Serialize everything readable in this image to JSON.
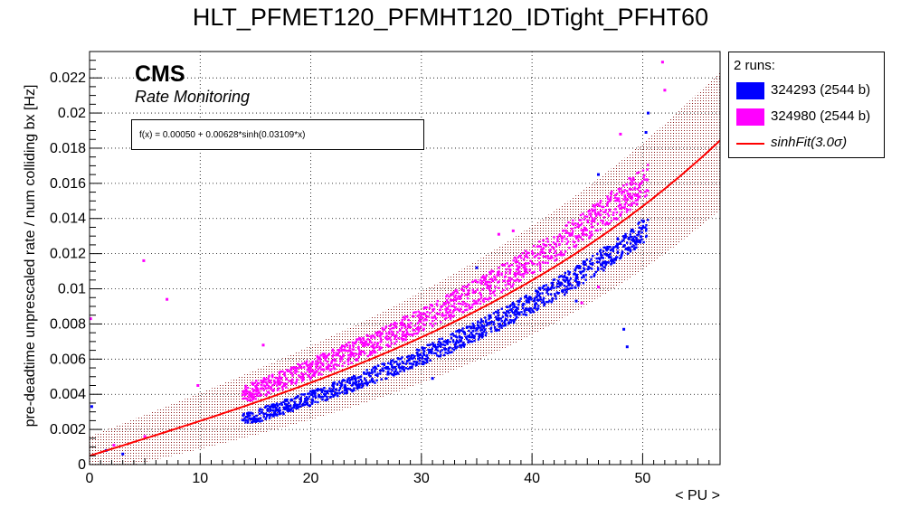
{
  "chart_data": {
    "type": "scatter",
    "title": "HLT_PFMET120_PFMHT120_IDTight_PFHT60",
    "xlabel": "< PU >",
    "ylabel": "pre-deadtime unprescaled rate / num colliding bx [Hz]",
    "xlim": [
      0,
      57
    ],
    "ylim": [
      0,
      0.0235
    ],
    "x_ticks": [
      0,
      10,
      20,
      30,
      40,
      50
    ],
    "y_ticks": [
      0,
      0.002,
      0.004,
      0.006,
      0.008,
      0.01,
      0.012,
      0.014,
      0.016,
      0.018,
      0.02,
      0.022
    ],
    "y_tick_labels": [
      "0",
      "0.002",
      "0.004",
      "0.006",
      "0.008",
      "0.01",
      "0.012",
      "0.014",
      "0.016",
      "0.018",
      "0.02",
      "0.022"
    ],
    "grid": true,
    "legend_placement": "top-right",
    "legend_header": "2 runs:",
    "series": [
      {
        "name": "324293 (2544 b)",
        "color": "#0000ff",
        "outliers": [
          [
            0.2,
            0.0033
          ],
          [
            1.5,
            0.0008
          ],
          [
            3.0,
            0.0006
          ],
          [
            44.0,
            0.0093
          ],
          [
            48.3,
            0.0077
          ],
          [
            48.6,
            0.0067
          ],
          [
            46.0,
            0.0165
          ],
          [
            50.3,
            0.0189
          ],
          [
            50.5,
            0.02
          ],
          [
            31.0,
            0.0049
          ],
          [
            22.0,
            0.0045
          ],
          [
            35.0,
            0.0112
          ]
        ]
      },
      {
        "name": "324980 (2544 b)",
        "color": "#ff00ff",
        "outliers": [
          [
            4.9,
            0.0116
          ],
          [
            7.0,
            0.0094
          ],
          [
            9.8,
            0.0045
          ],
          [
            5.0,
            0.0016
          ],
          [
            2.2,
            0.0011
          ],
          [
            15.7,
            0.0068
          ],
          [
            37.0,
            0.0131
          ],
          [
            38.3,
            0.0133
          ],
          [
            48.0,
            0.0188
          ],
          [
            51.8,
            0.0229
          ],
          [
            52.0,
            0.0213
          ],
          [
            44.5,
            0.0092
          ],
          [
            46.0,
            0.0101
          ],
          [
            0.1,
            0.0083
          ]
        ]
      }
    ],
    "fit": {
      "name": "sinhFit(3.0σ)",
      "formula": "f(x) = 0.00050 + 0.00628*sinh(0.03109*x)",
      "a": 0.0005,
      "b": 0.00628,
      "c": 0.03109,
      "color": "#ff0000",
      "band_sigma": 3.0
    }
  },
  "annotations": {
    "cms": "CMS",
    "subtitle": "Rate Monitoring"
  }
}
